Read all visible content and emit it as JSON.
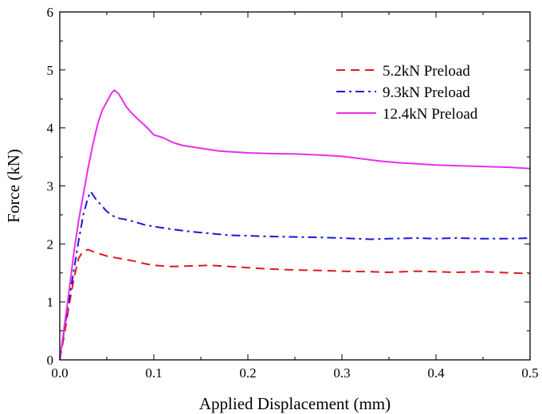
{
  "chart_data": {
    "type": "line",
    "title": "",
    "xlabel": "Applied Displacement (mm)",
    "ylabel": "Force (kN)",
    "xlim": [
      0.0,
      0.5
    ],
    "ylim": [
      0,
      6
    ],
    "xticks": [
      0.0,
      0.1,
      0.2,
      0.3,
      0.4,
      0.5
    ],
    "xtick_labels": [
      "0.0",
      "0.1",
      "0.2",
      "0.3",
      "0.4",
      "0.5"
    ],
    "yticks": [
      0,
      1,
      2,
      3,
      4,
      5,
      6
    ],
    "ytick_labels": [
      "0",
      "1",
      "2",
      "3",
      "4",
      "5",
      "6"
    ],
    "grid": false,
    "legend_position": "top-right",
    "series": [
      {
        "name": "5.2kN Preload",
        "color": "#e4161e",
        "dash": "dashed",
        "x": [
          0.0,
          0.005,
          0.01,
          0.015,
          0.02,
          0.025,
          0.03,
          0.04,
          0.05,
          0.06,
          0.07,
          0.08,
          0.09,
          0.1,
          0.12,
          0.14,
          0.16,
          0.18,
          0.2,
          0.22,
          0.25,
          0.28,
          0.3,
          0.33,
          0.35,
          0.38,
          0.4,
          0.42,
          0.45,
          0.48,
          0.5
        ],
        "y": [
          0.0,
          0.45,
          0.95,
          1.4,
          1.75,
          1.88,
          1.9,
          1.84,
          1.79,
          1.76,
          1.73,
          1.7,
          1.66,
          1.63,
          1.61,
          1.62,
          1.63,
          1.61,
          1.59,
          1.57,
          1.55,
          1.54,
          1.53,
          1.52,
          1.51,
          1.53,
          1.52,
          1.51,
          1.52,
          1.5,
          1.49
        ]
      },
      {
        "name": "9.3kN Preload",
        "color": "#1818d8",
        "dash": "dash-dot",
        "x": [
          0.0,
          0.005,
          0.01,
          0.015,
          0.02,
          0.025,
          0.03,
          0.033,
          0.038,
          0.045,
          0.05,
          0.055,
          0.06,
          0.07,
          0.08,
          0.09,
          0.1,
          0.12,
          0.14,
          0.16,
          0.18,
          0.2,
          0.22,
          0.25,
          0.28,
          0.3,
          0.33,
          0.35,
          0.38,
          0.4,
          0.42,
          0.45,
          0.48,
          0.5
        ],
        "y": [
          0.0,
          0.55,
          1.05,
          1.55,
          2.05,
          2.5,
          2.8,
          2.9,
          2.78,
          2.65,
          2.56,
          2.5,
          2.45,
          2.42,
          2.38,
          2.33,
          2.3,
          2.25,
          2.21,
          2.18,
          2.15,
          2.14,
          2.13,
          2.12,
          2.11,
          2.1,
          2.08,
          2.09,
          2.1,
          2.09,
          2.1,
          2.09,
          2.09,
          2.1
        ]
      },
      {
        "name": "12.4kN Preload",
        "color": "#e82ee8",
        "dash": "solid",
        "x": [
          0.0,
          0.005,
          0.01,
          0.015,
          0.02,
          0.025,
          0.03,
          0.035,
          0.04,
          0.045,
          0.05,
          0.055,
          0.058,
          0.062,
          0.066,
          0.07,
          0.075,
          0.08,
          0.085,
          0.09,
          0.095,
          0.1,
          0.11,
          0.12,
          0.13,
          0.15,
          0.17,
          0.2,
          0.22,
          0.25,
          0.28,
          0.3,
          0.32,
          0.34,
          0.36,
          0.38,
          0.4,
          0.42,
          0.44,
          0.46,
          0.48,
          0.5
        ],
        "y": [
          0.0,
          0.6,
          1.2,
          1.85,
          2.4,
          2.85,
          3.3,
          3.7,
          4.05,
          4.3,
          4.45,
          4.6,
          4.65,
          4.6,
          4.5,
          4.38,
          4.28,
          4.2,
          4.12,
          4.05,
          3.97,
          3.88,
          3.83,
          3.75,
          3.7,
          3.65,
          3.6,
          3.57,
          3.56,
          3.55,
          3.53,
          3.51,
          3.47,
          3.43,
          3.4,
          3.38,
          3.36,
          3.35,
          3.34,
          3.33,
          3.32,
          3.3
        ]
      }
    ]
  }
}
